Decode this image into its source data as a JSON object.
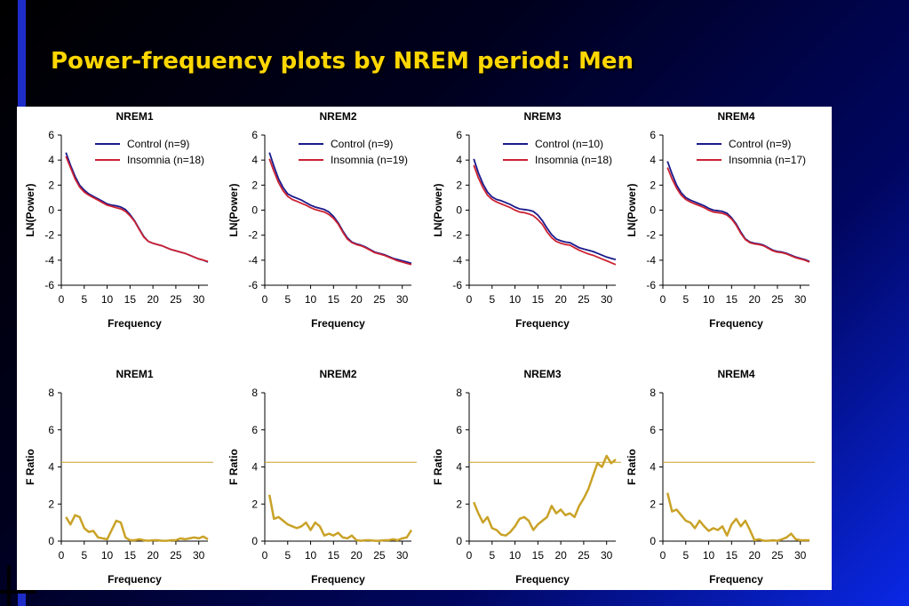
{
  "slide": {
    "title": "Power-frequency plots by NREM period: Men"
  },
  "colors": {
    "background": "#000080",
    "title": "#ffd700",
    "control": "#1a1a8c",
    "insomnia": "#cc2233",
    "fratio": "#c9a227",
    "threshold": "#c9a227"
  },
  "chart_data": [
    {
      "type": "line",
      "title": "NREM1",
      "xlabel": "Frequency",
      "ylabel": "LN(Power)",
      "xlim": [
        0,
        32
      ],
      "ylim": [
        -6,
        6
      ],
      "xticks": [
        0,
        5,
        10,
        15,
        20,
        25,
        30
      ],
      "yticks": [
        -6,
        -4,
        -2,
        0,
        2,
        4,
        6
      ],
      "legend": "top-right",
      "x": [
        1,
        2,
        3,
        4,
        5,
        6,
        7,
        8,
        9,
        10,
        11,
        12,
        13,
        14,
        15,
        16,
        17,
        18,
        19,
        20,
        21,
        22,
        23,
        24,
        25,
        26,
        27,
        28,
        29,
        30,
        31,
        32
      ],
      "series": [
        {
          "name": "Control (n=9)",
          "values": [
            4.6,
            3.6,
            2.7,
            2.0,
            1.6,
            1.3,
            1.1,
            0.9,
            0.7,
            0.5,
            0.4,
            0.35,
            0.25,
            0.05,
            -0.35,
            -0.85,
            -1.5,
            -2.1,
            -2.5,
            -2.65,
            -2.75,
            -2.85,
            -3.0,
            -3.15,
            -3.25,
            -3.35,
            -3.45,
            -3.6,
            -3.75,
            -3.9,
            -4.0,
            -4.15
          ]
        },
        {
          "name": "Insomnia (n=18)",
          "values": [
            4.3,
            3.4,
            2.5,
            1.85,
            1.45,
            1.2,
            1.0,
            0.8,
            0.6,
            0.4,
            0.3,
            0.2,
            0.1,
            -0.1,
            -0.45,
            -0.9,
            -1.55,
            -2.15,
            -2.5,
            -2.65,
            -2.75,
            -2.85,
            -3.0,
            -3.15,
            -3.25,
            -3.35,
            -3.45,
            -3.6,
            -3.75,
            -3.9,
            -4.0,
            -4.1
          ]
        }
      ]
    },
    {
      "type": "line",
      "title": "NREM2",
      "xlabel": "Frequency",
      "ylabel": "LN(Power)",
      "xlim": [
        0,
        32
      ],
      "ylim": [
        -6,
        6
      ],
      "xticks": [
        0,
        5,
        10,
        15,
        20,
        25,
        30
      ],
      "yticks": [
        -6,
        -4,
        -2,
        0,
        2,
        4,
        6
      ],
      "legend": "top-right",
      "x": [
        1,
        2,
        3,
        4,
        5,
        6,
        7,
        8,
        9,
        10,
        11,
        12,
        13,
        14,
        15,
        16,
        17,
        18,
        19,
        20,
        21,
        22,
        23,
        24,
        25,
        26,
        27,
        28,
        29,
        30,
        31,
        32
      ],
      "series": [
        {
          "name": "Control (n=9)",
          "values": [
            4.6,
            3.5,
            2.5,
            1.8,
            1.3,
            1.1,
            0.95,
            0.8,
            0.6,
            0.4,
            0.25,
            0.15,
            0.05,
            -0.15,
            -0.5,
            -1.0,
            -1.65,
            -2.2,
            -2.55,
            -2.7,
            -2.8,
            -2.95,
            -3.15,
            -3.35,
            -3.45,
            -3.55,
            -3.7,
            -3.85,
            -3.95,
            -4.05,
            -4.15,
            -4.25
          ]
        },
        {
          "name": "Insomnia (n=19)",
          "values": [
            4.1,
            3.1,
            2.2,
            1.55,
            1.1,
            0.85,
            0.7,
            0.55,
            0.4,
            0.2,
            0.05,
            -0.05,
            -0.15,
            -0.35,
            -0.65,
            -1.1,
            -1.75,
            -2.3,
            -2.6,
            -2.75,
            -2.85,
            -3.0,
            -3.2,
            -3.4,
            -3.5,
            -3.6,
            -3.75,
            -3.9,
            -4.05,
            -4.15,
            -4.25,
            -4.35
          ]
        }
      ]
    },
    {
      "type": "line",
      "title": "NREM3",
      "xlabel": "Frequency",
      "ylabel": "LN(Power)",
      "xlim": [
        0,
        32
      ],
      "ylim": [
        -6,
        6
      ],
      "xticks": [
        0,
        5,
        10,
        15,
        20,
        25,
        30
      ],
      "yticks": [
        -6,
        -4,
        -2,
        0,
        2,
        4,
        6
      ],
      "legend": "top-right",
      "x": [
        1,
        2,
        3,
        4,
        5,
        6,
        7,
        8,
        9,
        10,
        11,
        12,
        13,
        14,
        15,
        16,
        17,
        18,
        19,
        20,
        21,
        22,
        23,
        24,
        25,
        26,
        27,
        28,
        29,
        30,
        31,
        32
      ],
      "series": [
        {
          "name": "Control (n=10)",
          "values": [
            4.1,
            3.0,
            2.1,
            1.45,
            1.05,
            0.85,
            0.75,
            0.6,
            0.45,
            0.25,
            0.1,
            0.05,
            0.0,
            -0.1,
            -0.4,
            -0.85,
            -1.45,
            -1.95,
            -2.3,
            -2.45,
            -2.55,
            -2.6,
            -2.8,
            -3.0,
            -3.1,
            -3.2,
            -3.3,
            -3.45,
            -3.6,
            -3.75,
            -3.85,
            -3.95
          ]
        },
        {
          "name": "Insomnia (n=18)",
          "values": [
            3.6,
            2.6,
            1.8,
            1.2,
            0.85,
            0.65,
            0.5,
            0.35,
            0.2,
            0.0,
            -0.15,
            -0.2,
            -0.3,
            -0.45,
            -0.75,
            -1.15,
            -1.75,
            -2.2,
            -2.5,
            -2.65,
            -2.75,
            -2.8,
            -3.0,
            -3.2,
            -3.35,
            -3.5,
            -3.6,
            -3.75,
            -3.9,
            -4.05,
            -4.2,
            -4.35
          ]
        }
      ]
    },
    {
      "type": "line",
      "title": "NREM4",
      "xlabel": "Frequency",
      "ylabel": "LN(Power)",
      "xlim": [
        0,
        32
      ],
      "ylim": [
        -6,
        6
      ],
      "xticks": [
        0,
        5,
        10,
        15,
        20,
        25,
        30
      ],
      "yticks": [
        -6,
        -4,
        -2,
        0,
        2,
        4,
        6
      ],
      "legend": "top-right",
      "x": [
        1,
        2,
        3,
        4,
        5,
        6,
        7,
        8,
        9,
        10,
        11,
        12,
        13,
        14,
        15,
        16,
        17,
        18,
        19,
        20,
        21,
        22,
        23,
        24,
        25,
        26,
        27,
        28,
        29,
        30,
        31,
        32
      ],
      "series": [
        {
          "name": "Control (n=9)",
          "values": [
            3.9,
            2.9,
            2.0,
            1.4,
            1.0,
            0.8,
            0.65,
            0.5,
            0.35,
            0.15,
            0.0,
            -0.05,
            -0.1,
            -0.25,
            -0.6,
            -1.1,
            -1.75,
            -2.3,
            -2.55,
            -2.65,
            -2.7,
            -2.8,
            -3.0,
            -3.2,
            -3.3,
            -3.35,
            -3.45,
            -3.6,
            -3.75,
            -3.85,
            -3.95,
            -4.1
          ]
        },
        {
          "name": "Insomnia (n=17)",
          "values": [
            3.4,
            2.5,
            1.75,
            1.2,
            0.85,
            0.65,
            0.5,
            0.35,
            0.2,
            0.0,
            -0.15,
            -0.2,
            -0.25,
            -0.4,
            -0.7,
            -1.2,
            -1.85,
            -2.35,
            -2.6,
            -2.7,
            -2.75,
            -2.85,
            -3.05,
            -3.25,
            -3.35,
            -3.4,
            -3.5,
            -3.65,
            -3.8,
            -3.9,
            -4.0,
            -4.15
          ]
        }
      ]
    },
    {
      "type": "line",
      "title": "NREM1",
      "xlabel": "Frequency",
      "ylabel": "F Ratio",
      "xlim": [
        0,
        32
      ],
      "ylim": [
        0,
        8
      ],
      "xticks": [
        0,
        5,
        10,
        15,
        20,
        25,
        30
      ],
      "yticks": [
        0,
        2,
        4,
        6,
        8
      ],
      "threshold": 4.25,
      "x": [
        1,
        2,
        3,
        4,
        5,
        6,
        7,
        8,
        9,
        10,
        11,
        12,
        13,
        14,
        15,
        16,
        17,
        18,
        19,
        20,
        21,
        22,
        23,
        24,
        25,
        26,
        27,
        28,
        29,
        30,
        31,
        32
      ],
      "series": [
        {
          "values": [
            1.3,
            0.9,
            1.4,
            1.3,
            0.7,
            0.5,
            0.55,
            0.2,
            0.15,
            0.1,
            0.6,
            1.1,
            1.0,
            0.2,
            0.05,
            0.05,
            0.1,
            0.05,
            0.02,
            0.05,
            0.05,
            0.02,
            0.02,
            0.05,
            0.05,
            0.15,
            0.1,
            0.15,
            0.2,
            0.15,
            0.25,
            0.1
          ]
        }
      ]
    },
    {
      "type": "line",
      "title": "NREM2",
      "xlabel": "Frequency",
      "ylabel": "F Ratio",
      "xlim": [
        0,
        32
      ],
      "ylim": [
        0,
        8
      ],
      "xticks": [
        0,
        5,
        10,
        15,
        20,
        25,
        30
      ],
      "yticks": [
        0,
        2,
        4,
        6,
        8
      ],
      "threshold": 4.25,
      "x": [
        1,
        2,
        3,
        4,
        5,
        6,
        7,
        8,
        9,
        10,
        11,
        12,
        13,
        14,
        15,
        16,
        17,
        18,
        19,
        20,
        21,
        22,
        23,
        24,
        25,
        26,
        27,
        28,
        29,
        30,
        31,
        32
      ],
      "series": [
        {
          "values": [
            2.5,
            1.2,
            1.3,
            1.1,
            0.9,
            0.8,
            0.7,
            0.8,
            1.0,
            0.6,
            1.0,
            0.8,
            0.3,
            0.4,
            0.3,
            0.45,
            0.2,
            0.15,
            0.3,
            0.05,
            0.02,
            0.05,
            0.05,
            0.02,
            0.02,
            0.05,
            0.05,
            0.1,
            0.05,
            0.15,
            0.2,
            0.6
          ]
        }
      ]
    },
    {
      "type": "line",
      "title": "NREM3",
      "xlabel": "Frequency",
      "ylabel": "F Ratio",
      "xlim": [
        0,
        32
      ],
      "ylim": [
        0,
        8
      ],
      "xticks": [
        0,
        5,
        10,
        15,
        20,
        25,
        30
      ],
      "yticks": [
        0,
        2,
        4,
        6,
        8
      ],
      "threshold": 4.25,
      "x": [
        1,
        2,
        3,
        4,
        5,
        6,
        7,
        8,
        9,
        10,
        11,
        12,
        13,
        14,
        15,
        16,
        17,
        18,
        19,
        20,
        21,
        22,
        23,
        24,
        25,
        26,
        27,
        28,
        29,
        30,
        31,
        32
      ],
      "series": [
        {
          "values": [
            2.1,
            1.5,
            1.0,
            1.3,
            0.7,
            0.6,
            0.35,
            0.3,
            0.5,
            0.8,
            1.2,
            1.3,
            1.1,
            0.6,
            0.9,
            1.1,
            1.3,
            1.9,
            1.5,
            1.7,
            1.4,
            1.5,
            1.3,
            1.9,
            2.3,
            2.8,
            3.5,
            4.2,
            4.0,
            4.6,
            4.2,
            4.4
          ]
        }
      ]
    },
    {
      "type": "line",
      "title": "NREM4",
      "xlabel": "Frequency",
      "ylabel": "F Ratio",
      "xlim": [
        0,
        32
      ],
      "ylim": [
        0,
        8
      ],
      "xticks": [
        0,
        5,
        10,
        15,
        20,
        25,
        30
      ],
      "yticks": [
        0,
        2,
        4,
        6,
        8
      ],
      "threshold": 4.25,
      "x": [
        1,
        2,
        3,
        4,
        5,
        6,
        7,
        8,
        9,
        10,
        11,
        12,
        13,
        14,
        15,
        16,
        17,
        18,
        19,
        20,
        21,
        22,
        23,
        24,
        25,
        26,
        27,
        28,
        29,
        30,
        31,
        32
      ],
      "series": [
        {
          "values": [
            2.6,
            1.6,
            1.7,
            1.4,
            1.1,
            1.0,
            0.7,
            1.1,
            0.8,
            0.55,
            0.7,
            0.6,
            0.8,
            0.3,
            0.9,
            1.2,
            0.8,
            1.1,
            0.6,
            0.05,
            0.1,
            0.02,
            0.02,
            0.05,
            0.02,
            0.1,
            0.2,
            0.4,
            0.1,
            0.05,
            0.05,
            0.05
          ]
        }
      ]
    }
  ]
}
